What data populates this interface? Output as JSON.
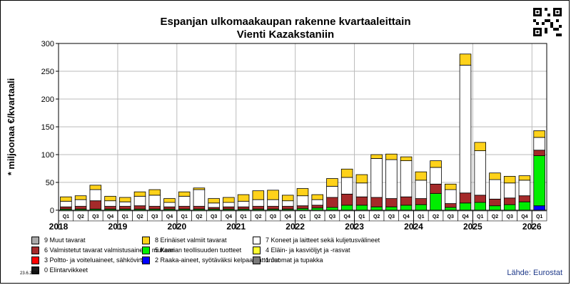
{
  "title": "Espanjan ulkomaakaupan rakenne kvartaaleittain",
  "subtitle": "Vienti Kazakstaniin",
  "date": "23.6.2026",
  "source": "Lähde: Eurostat",
  "chart_data": {
    "type": "bar",
    "stacked": true,
    "ylabel": "* miljoonaa €/kvartaali",
    "ylim": [
      0,
      300
    ],
    "yticks": [
      0,
      50,
      100,
      150,
      200,
      250,
      300
    ],
    "grid": true,
    "quarter_labels": [
      "Q1",
      "Q2",
      "Q3",
      "Q4",
      "Q1",
      "Q2",
      "Q3",
      "Q4",
      "Q1",
      "Q2",
      "Q3",
      "Q4",
      "Q1",
      "Q2",
      "Q3",
      "Q4",
      "Q1",
      "Q2",
      "Q3",
      "Q4",
      "Q1",
      "Q2",
      "Q3",
      "Q4",
      "Q1",
      "Q2",
      "Q3",
      "Q4",
      "Q1",
      "Q2",
      "Q3",
      "Q4",
      "Q1"
    ],
    "years": [
      "2018",
      "2019",
      "2020",
      "2021",
      "2022",
      "2023",
      "2024",
      "2025",
      "2026"
    ],
    "series": [
      {
        "name": "2 Raaka-aineet, syötäväksi kelpaamattomat",
        "color": "#0000ff",
        "values": [
          0,
          0,
          0,
          0,
          0,
          0,
          0,
          0,
          0,
          0,
          0,
          0,
          0,
          0,
          0,
          0,
          0,
          0,
          0,
          0,
          0,
          0,
          0,
          0,
          0,
          0,
          0,
          0,
          0,
          0,
          0,
          0,
          8
        ]
      },
      {
        "name": "5 Kemian teollisuuden tuotteet",
        "color": "#00ee00",
        "values": [
          2,
          2,
          2,
          2,
          2,
          2,
          2,
          2,
          2,
          2,
          2,
          2,
          2,
          2,
          2,
          2,
          3,
          4,
          5,
          9,
          9,
          6,
          6,
          9,
          10,
          30,
          5,
          13,
          14,
          8,
          10,
          15,
          90
        ]
      },
      {
        "name": "6 Valmistetut tavarat valmistusaineen mukaan",
        "color": "#a52a2a",
        "values": [
          4,
          5,
          15,
          5,
          5,
          6,
          5,
          4,
          5,
          5,
          3,
          4,
          4,
          5,
          5,
          5,
          5,
          5,
          18,
          20,
          15,
          17,
          15,
          15,
          11,
          17,
          7,
          18,
          13,
          12,
          12,
          11,
          10
        ]
      },
      {
        "name": "7 Koneet ja laitteet sekä kuljetusvälineet",
        "color": "#ffffff",
        "values": [
          10,
          12,
          20,
          10,
          8,
          17,
          20,
          8,
          18,
          30,
          8,
          8,
          10,
          12,
          12,
          10,
          18,
          10,
          20,
          30,
          25,
          70,
          70,
          65,
          33,
          30,
          25,
          230,
          80,
          35,
          27,
          28,
          23
        ]
      },
      {
        "name": "8 Erinäiset valmiit tavarat",
        "color": "#ffd21a",
        "values": [
          8,
          7,
          8,
          8,
          8,
          8,
          10,
          7,
          8,
          3,
          8,
          9,
          12,
          16,
          17,
          10,
          13,
          9,
          14,
          15,
          15,
          7,
          10,
          7,
          15,
          12,
          10,
          20,
          15,
          12,
          12,
          8,
          12
        ]
      }
    ],
    "legend_only": [
      {
        "name": "9 Muut tavarat",
        "color": "#a9a9a9"
      },
      {
        "name": "4 Eläin- ja kasviöljyt ja -rasvat",
        "color": "#ffff33"
      },
      {
        "name": "3 Poltto- ja voiteluaineet, sähkövirta",
        "color": "#ff0000"
      },
      {
        "name": "1 Juomat ja tupakka",
        "color": "#7a7a7a"
      },
      {
        "name": "0 Elintarvikkeet",
        "color": "#1a1a1a"
      }
    ]
  },
  "legend": [
    {
      "label": "9 Muut tavarat",
      "color": "#a9a9a9"
    },
    {
      "label": "8 Erinäiset valmiit tavarat",
      "color": "#ffd21a"
    },
    {
      "label": "7 Koneet ja laitteet sekä kuljetusvälineet",
      "color": "#ffffff"
    },
    {
      "label": "6 Valmistetut tavarat valmistusaineen mukaan",
      "color": "#a52a2a"
    },
    {
      "label": "5 Kemian teollisuuden tuotteet",
      "color": "#00ee00"
    },
    {
      "label": "4 Eläin- ja kasviöljyt ja -rasvat",
      "color": "#ffff33"
    },
    {
      "label": "3 Poltto- ja voiteluaineet, sähkövirta",
      "color": "#ff0000"
    },
    {
      "label": "2 Raaka-aineet, syötäväksi kelpaamattomat",
      "color": "#0000ff"
    },
    {
      "label": "1 Juomat ja tupakka",
      "color": "#7a7a7a"
    },
    {
      "label": "0 Elintarvikkeet",
      "color": "#1a1a1a"
    }
  ]
}
